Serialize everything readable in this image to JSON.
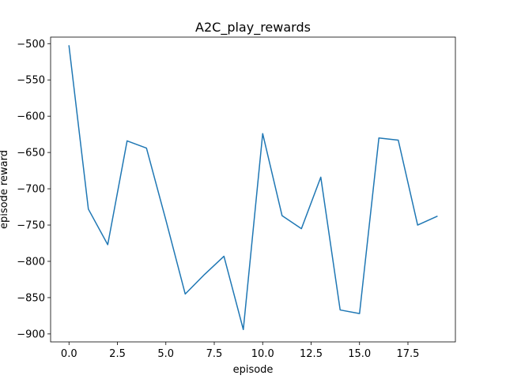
{
  "chart_data": {
    "type": "line",
    "title": "A2C_play_rewards",
    "xlabel": "episode",
    "ylabel": "episode reward",
    "xlim": [
      -0.95,
      19.95
    ],
    "ylim": [
      -911,
      -491
    ],
    "xticks": [
      0.0,
      2.5,
      5.0,
      7.5,
      10.0,
      12.5,
      15.0,
      17.5
    ],
    "xtick_labels": [
      "0.0",
      "2.5",
      "5.0",
      "7.5",
      "10.0",
      "12.5",
      "15.0",
      "17.5"
    ],
    "yticks": [
      -500,
      -550,
      -600,
      -650,
      -700,
      -750,
      -800,
      -850,
      -900
    ],
    "ytick_labels": [
      "−500",
      "−550",
      "−600",
      "−650",
      "−700",
      "−750",
      "−800",
      "−850",
      "−900"
    ],
    "grid": false,
    "series": [
      {
        "color": "#1f77b4",
        "x": [
          0,
          1,
          2,
          3,
          4,
          5,
          6,
          7,
          8,
          9,
          10,
          11,
          12,
          13,
          14,
          15,
          16,
          17,
          18,
          19
        ],
        "values": [
          -503,
          -728,
          -777,
          -634,
          -644,
          -743,
          -845,
          -818,
          -793,
          -894,
          -624,
          -737,
          -755,
          -684,
          -867,
          -872,
          -630,
          -633,
          -750,
          -738
        ]
      }
    ]
  }
}
